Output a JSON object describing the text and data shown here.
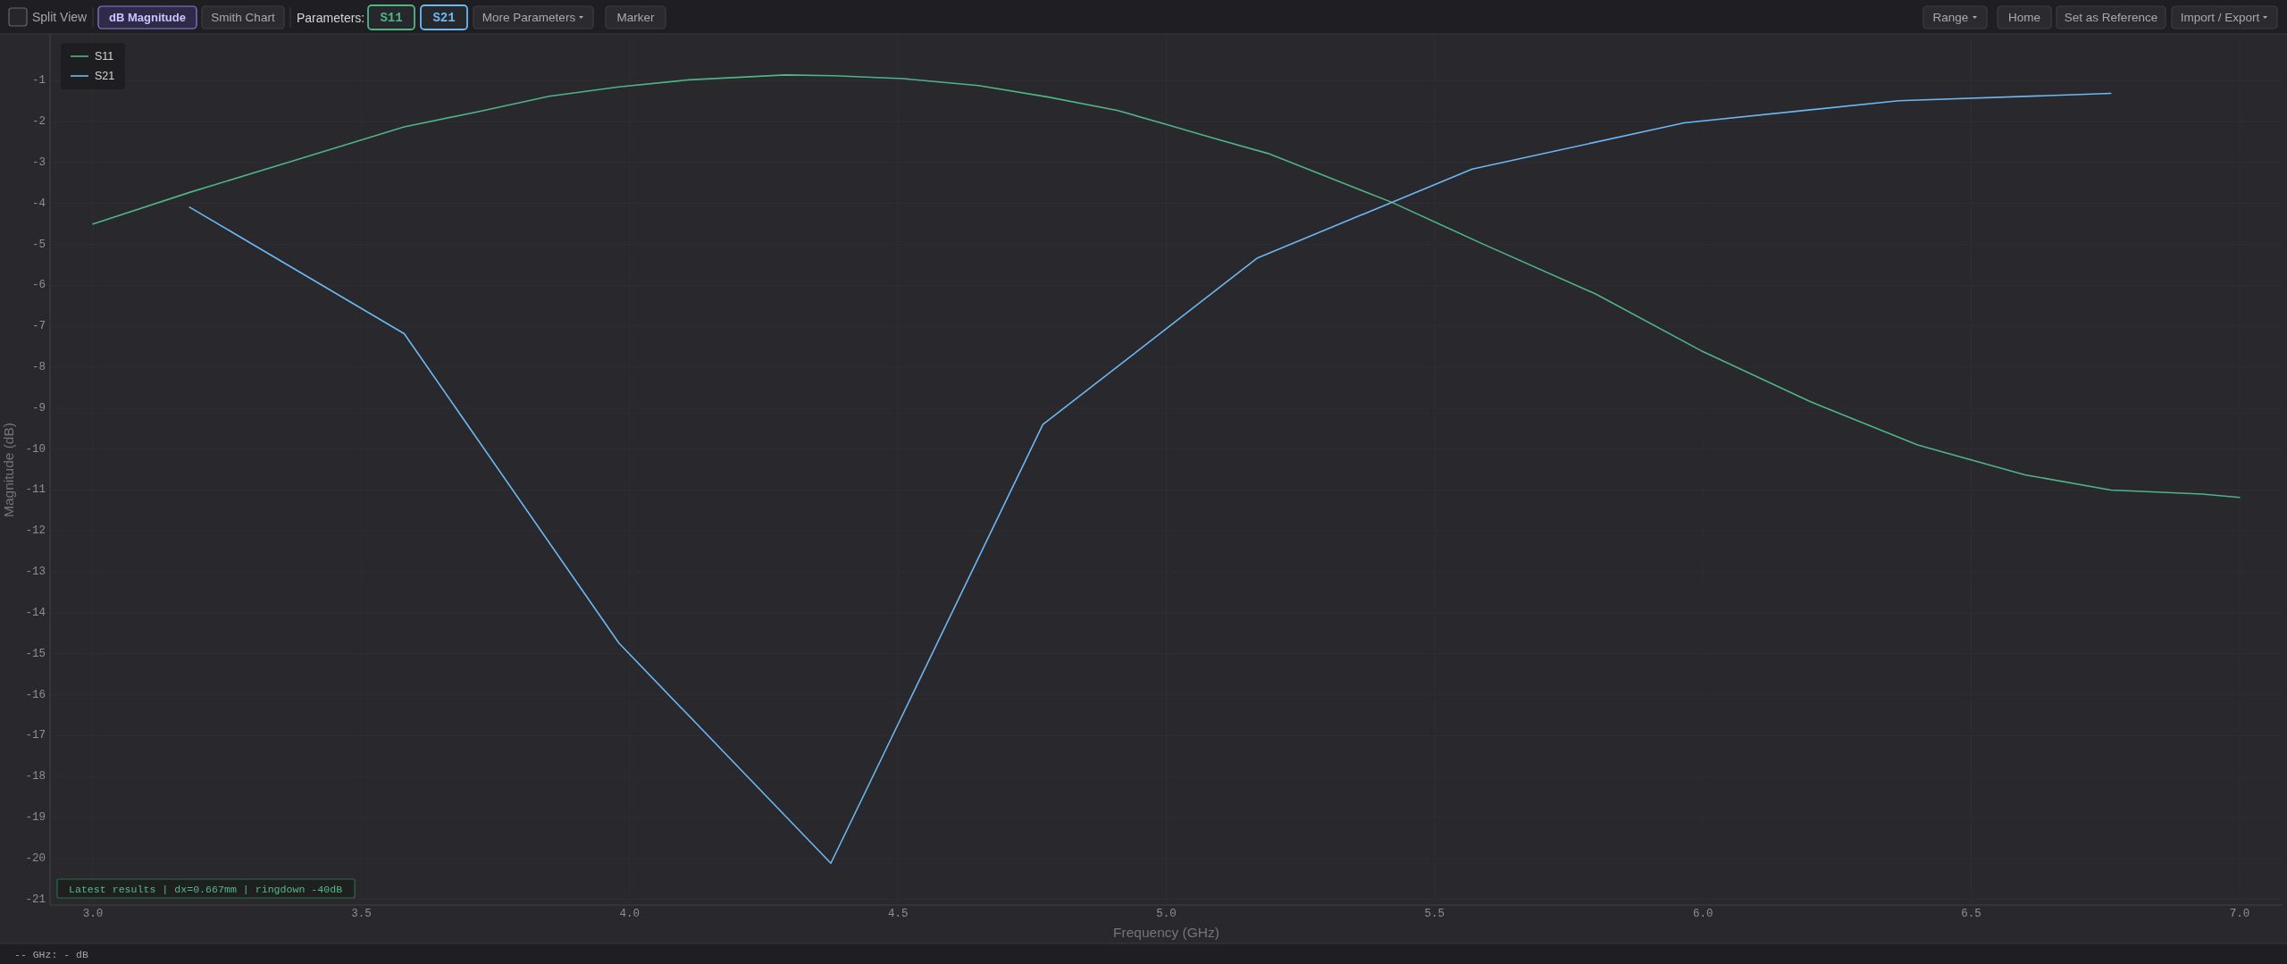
{
  "chart_data": {
    "type": "line",
    "xlabel": "Frequency (GHz)",
    "ylabel": "Magnitude (dB)",
    "xlim": [
      2.92,
      7.08
    ],
    "xticks": [
      {
        "value": 3,
        "label": "3.0"
      },
      3.5,
      {
        "value": 4,
        "label": "4.0"
      },
      4.5,
      {
        "value": 5,
        "label": "5.0"
      },
      5.5,
      {
        "value": 6,
        "label": "6.0"
      },
      6.5,
      {
        "value": 7,
        "label": "7.0"
      }
    ],
    "ylim": [
      -21.14,
      0.12
    ],
    "yticks": [
      -1,
      -2,
      -3,
      -4,
      -5,
      -6,
      -7,
      -8,
      -9,
      -10,
      -11,
      -12,
      -13,
      -14,
      -15,
      -16,
      -17,
      -18,
      -19,
      -20,
      -21
    ],
    "grid": true,
    "legend": "top left",
    "series": [
      {
        "name": "S11",
        "color": "#4fb585",
        "x": [
          3.0,
          3.18,
          3.38,
          3.58,
          3.72,
          3.85,
          3.98,
          4.11,
          4.29,
          4.38,
          4.51,
          4.65,
          4.78,
          4.91,
          5.0,
          5.09,
          5.19,
          5.42,
          5.59,
          5.8,
          6.0,
          6.2,
          6.4,
          6.6,
          6.76,
          6.93,
          7.0
        ],
        "values": [
          -4.5,
          -3.73,
          -2.93,
          -2.13,
          -1.75,
          -1.38,
          -1.15,
          -0.98,
          -0.86,
          -0.88,
          -0.95,
          -1.12,
          -1.4,
          -1.73,
          -2.07,
          -2.41,
          -2.78,
          -3.97,
          -4.99,
          -6.21,
          -7.62,
          -8.84,
          -9.9,
          -10.63,
          -11.0,
          -11.1,
          -11.18
        ]
      },
      {
        "name": "S21",
        "color": "#6cb8f2",
        "x": [
          3.18,
          3.58,
          3.98,
          4.375,
          4.77,
          5.17,
          5.57,
          5.965,
          6.365,
          6.76
        ],
        "values": [
          -4.09,
          -7.18,
          -14.74,
          -20.12,
          -9.4,
          -5.33,
          -3.16,
          -2.03,
          -1.49,
          -1.31
        ]
      }
    ],
    "annotations": [
      "Split View",
      "dB Magnitude",
      "Smith Chart",
      "Parameters:",
      "More Parameters",
      "Marker",
      "Range",
      "Home",
      "Set as Reference",
      "Import / Export",
      "Latest results | dx=0.667mm | ringdown -40dB",
      "-- GHz: - dB"
    ]
  }
}
